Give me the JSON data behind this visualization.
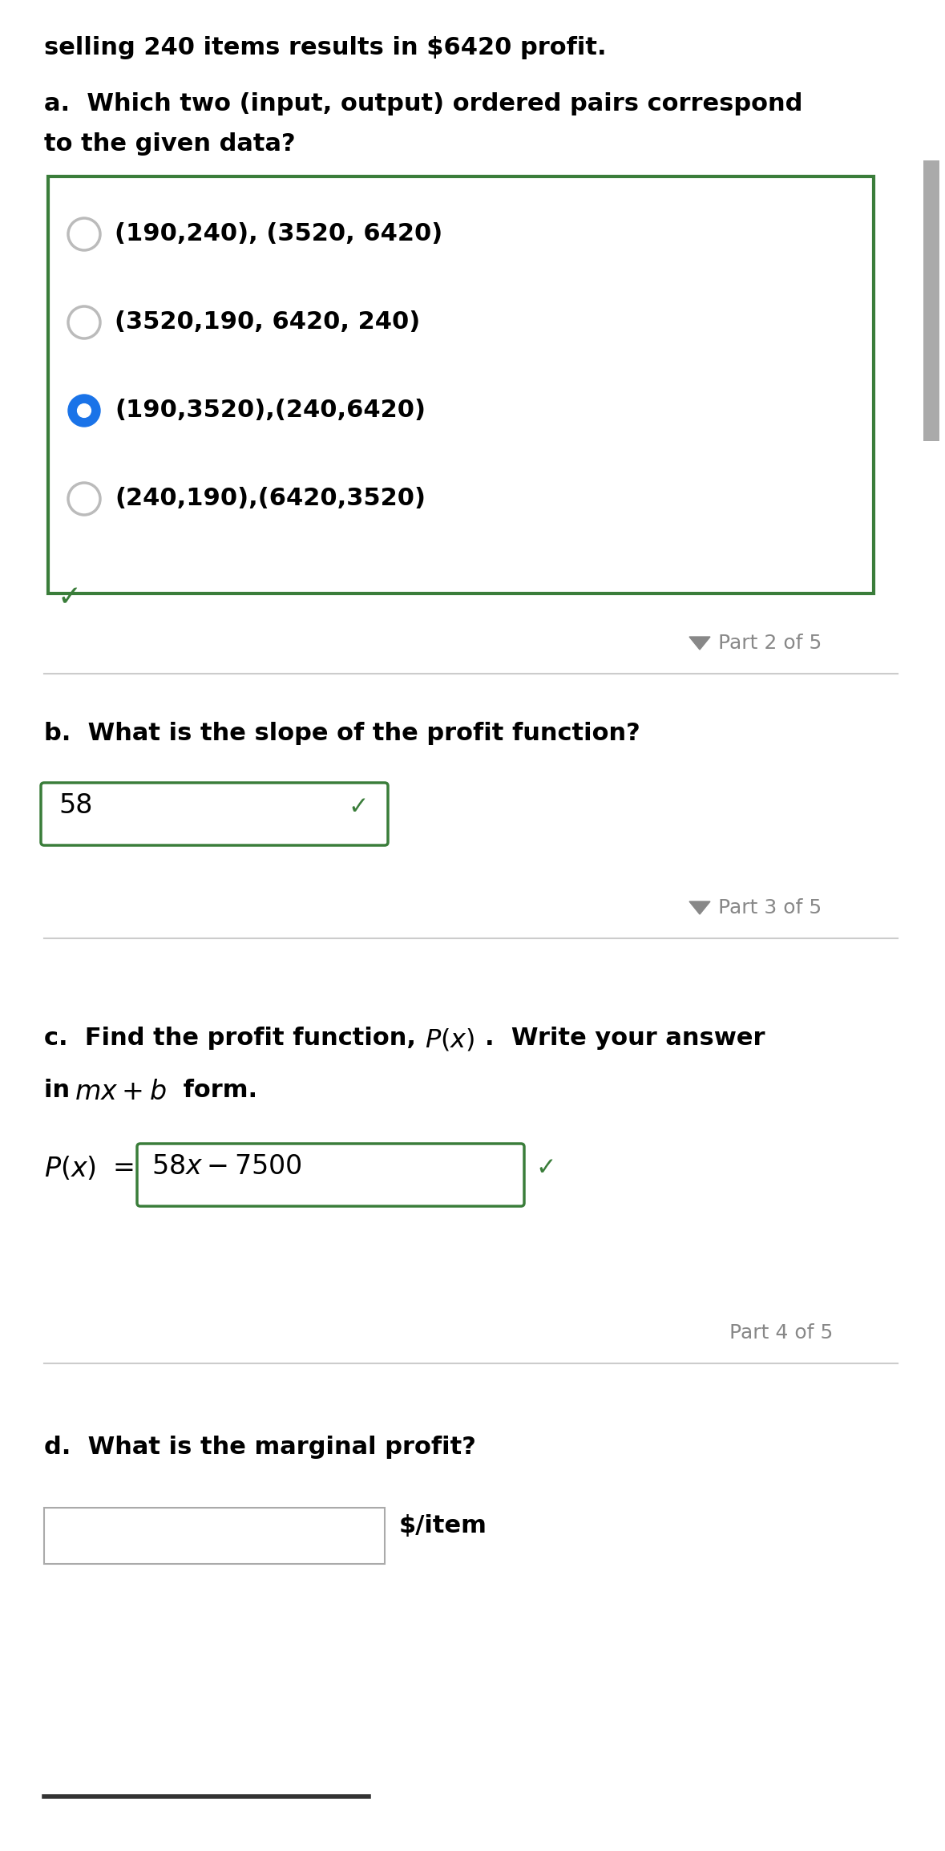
{
  "bg_color": "#ffffff",
  "intro_text": "selling 240 items results in $6420 profit.",
  "part_a_q1": "a.  Which two (input, output) ordered pairs correspond",
  "part_a_q2": "to the given data?",
  "options": [
    "(190,240), (3520, 6420)",
    "(3520,190, 6420, 240)",
    "(190,3520),(240,6420)",
    "(240,190),(6420,3520)"
  ],
  "selected_option": 2,
  "checkmark_color": "#3a7d3a",
  "radio_unselected_color": "#bbbbbb",
  "radio_selected_color": "#1a73e8",
  "box_border_color": "#3a7d3a",
  "part2_label": "Part 2 of 5",
  "part3_label": "Part 3 of 5",
  "part4_label": "Part 4 of 5",
  "part_b_question": "b.  What is the slope of the profit function?",
  "slope_answer": "58",
  "part_d_question": "d.  What is the marginal profit?",
  "dollar_per_item": "$/item",
  "separator_color": "#cccccc",
  "triangle_color": "#888888",
  "text_color": "#000000",
  "font_size_main": 22,
  "font_size_part": 18,
  "scrollbar_color": "#aaaaaa"
}
